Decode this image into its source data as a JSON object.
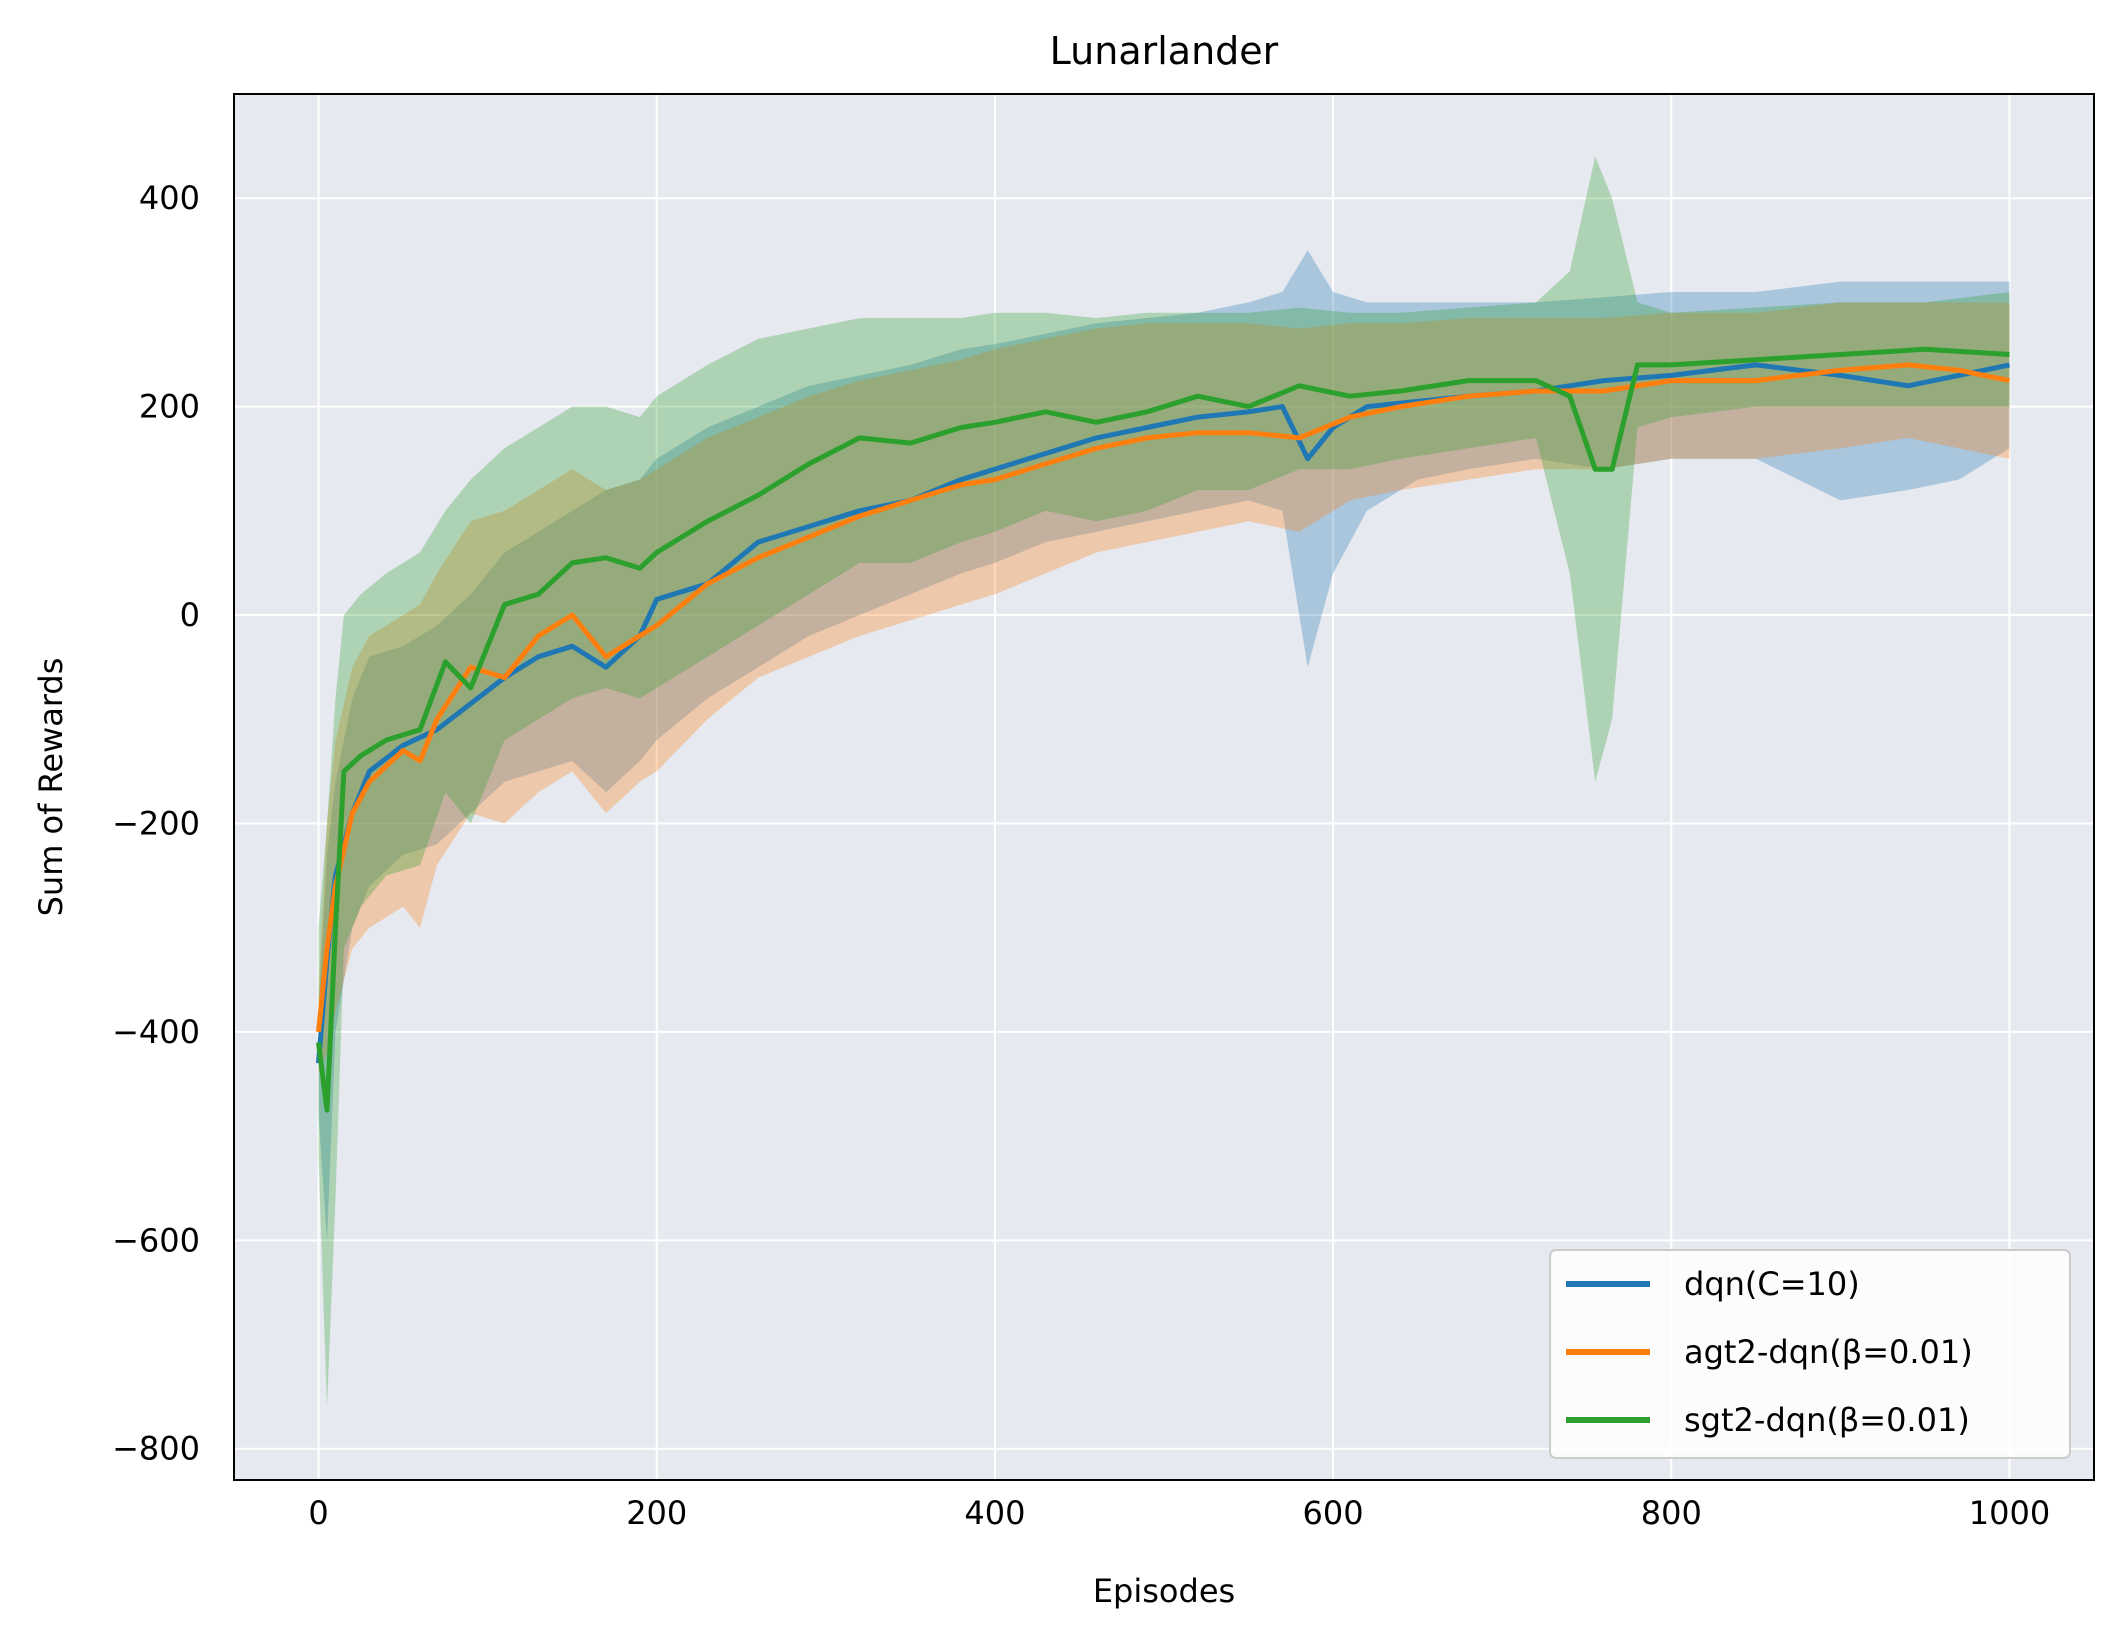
{
  "chart_data": {
    "type": "line",
    "title": "Lunarlander",
    "xlabel": "Episodes",
    "ylabel": "Sum of Rewards",
    "xlim": [
      -50,
      1050
    ],
    "ylim": [
      -830,
      500
    ],
    "xticks": [
      0,
      200,
      400,
      600,
      800,
      1000
    ],
    "yticks": [
      400,
      200,
      0,
      -200,
      -400,
      -600,
      -800
    ],
    "xtick_labels": [
      "0",
      "200",
      "400",
      "600",
      "800",
      "1000"
    ],
    "ytick_labels": [
      "400",
      "200",
      "0",
      "−200",
      "−400",
      "−600",
      "−800"
    ],
    "grid": true,
    "legend_position": "lower right",
    "background": "#e6e9ef",
    "series": [
      {
        "name": "dqn(C=10)",
        "color": "#1f77b4",
        "x": [
          0,
          5,
          10,
          20,
          30,
          50,
          70,
          90,
          110,
          130,
          150,
          170,
          190,
          200,
          230,
          260,
          290,
          320,
          350,
          380,
          400,
          430,
          460,
          490,
          520,
          550,
          570,
          585,
          600,
          620,
          650,
          680,
          720,
          760,
          800,
          850,
          900,
          940,
          970,
          1000
        ],
        "y": [
          -430,
          -330,
          -250,
          -190,
          -150,
          -125,
          -110,
          -85,
          -60,
          -40,
          -30,
          -50,
          -20,
          15,
          30,
          70,
          85,
          100,
          110,
          130,
          140,
          155,
          170,
          180,
          190,
          195,
          200,
          150,
          180,
          200,
          205,
          210,
          215,
          225,
          230,
          240,
          230,
          220,
          230,
          240
        ],
        "upper": [
          -380,
          -230,
          -160,
          -80,
          -40,
          -30,
          -10,
          20,
          60,
          80,
          100,
          120,
          130,
          150,
          180,
          200,
          220,
          230,
          240,
          255,
          260,
          270,
          280,
          285,
          290,
          300,
          310,
          350,
          310,
          300,
          300,
          300,
          300,
          305,
          310,
          310,
          320,
          320,
          320,
          320
        ],
        "lower": [
          -480,
          -600,
          -400,
          -300,
          -260,
          -230,
          -220,
          -190,
          -160,
          -150,
          -140,
          -170,
          -140,
          -120,
          -80,
          -50,
          -20,
          0,
          20,
          40,
          50,
          70,
          80,
          90,
          100,
          110,
          100,
          -50,
          40,
          100,
          130,
          140,
          150,
          140,
          150,
          150,
          110,
          120,
          130,
          160
        ]
      },
      {
        "name": "agt2-dqn(β=0.01)",
        "color": "#ff7f0e",
        "x": [
          0,
          5,
          10,
          20,
          30,
          50,
          60,
          70,
          90,
          110,
          130,
          150,
          170,
          190,
          200,
          230,
          260,
          290,
          320,
          350,
          380,
          400,
          430,
          460,
          490,
          520,
          550,
          580,
          610,
          640,
          680,
          720,
          760,
          800,
          850,
          900,
          940,
          970,
          1000
        ],
        "y": [
          -400,
          -320,
          -260,
          -190,
          -160,
          -130,
          -140,
          -100,
          -50,
          -60,
          -20,
          0,
          -40,
          -20,
          -10,
          30,
          55,
          75,
          95,
          110,
          125,
          130,
          145,
          160,
          170,
          175,
          175,
          170,
          190,
          200,
          210,
          215,
          215,
          225,
          225,
          235,
          240,
          235,
          225
        ],
        "upper": [
          -360,
          -200,
          -120,
          -50,
          -20,
          0,
          10,
          40,
          90,
          100,
          120,
          140,
          120,
          130,
          140,
          170,
          190,
          210,
          225,
          235,
          245,
          255,
          265,
          275,
          280,
          280,
          280,
          275,
          280,
          280,
          285,
          285,
          285,
          290,
          290,
          300,
          300,
          300,
          300
        ],
        "lower": [
          -440,
          -420,
          -380,
          -320,
          -300,
          -280,
          -300,
          -240,
          -190,
          -200,
          -170,
          -150,
          -190,
          -160,
          -150,
          -100,
          -60,
          -40,
          -20,
          -5,
          10,
          20,
          40,
          60,
          70,
          80,
          90,
          80,
          110,
          120,
          130,
          140,
          140,
          150,
          150,
          160,
          170,
          160,
          150
        ]
      },
      {
        "name": "sgt2-dqn(β=0.01)",
        "color": "#2ca02c",
        "x": [
          0,
          5,
          10,
          15,
          25,
          40,
          60,
          75,
          90,
          110,
          130,
          150,
          170,
          190,
          200,
          230,
          260,
          290,
          320,
          350,
          380,
          400,
          430,
          460,
          490,
          520,
          550,
          580,
          610,
          640,
          680,
          720,
          740,
          755,
          765,
          780,
          800,
          850,
          900,
          950,
          1000
        ],
        "y": [
          -410,
          -475,
          -300,
          -150,
          -135,
          -120,
          -110,
          -45,
          -70,
          10,
          20,
          50,
          55,
          45,
          60,
          90,
          115,
          145,
          170,
          165,
          180,
          185,
          195,
          185,
          195,
          210,
          200,
          220,
          210,
          215,
          225,
          225,
          210,
          140,
          140,
          240,
          240,
          245,
          250,
          255,
          250
        ],
        "upper": [
          -300,
          -200,
          -80,
          0,
          20,
          40,
          60,
          100,
          130,
          160,
          180,
          200,
          200,
          190,
          210,
          240,
          265,
          275,
          285,
          285,
          285,
          290,
          290,
          285,
          290,
          290,
          290,
          295,
          290,
          290,
          295,
          300,
          330,
          440,
          400,
          300,
          290,
          295,
          300,
          300,
          310
        ],
        "lower": [
          -520,
          -760,
          -560,
          -320,
          -280,
          -250,
          -240,
          -170,
          -200,
          -120,
          -100,
          -80,
          -70,
          -80,
          -70,
          -40,
          -10,
          20,
          50,
          50,
          70,
          80,
          100,
          90,
          100,
          120,
          120,
          140,
          140,
          150,
          160,
          170,
          40,
          -160,
          -100,
          180,
          190,
          200,
          200,
          200,
          200
        ]
      }
    ]
  }
}
